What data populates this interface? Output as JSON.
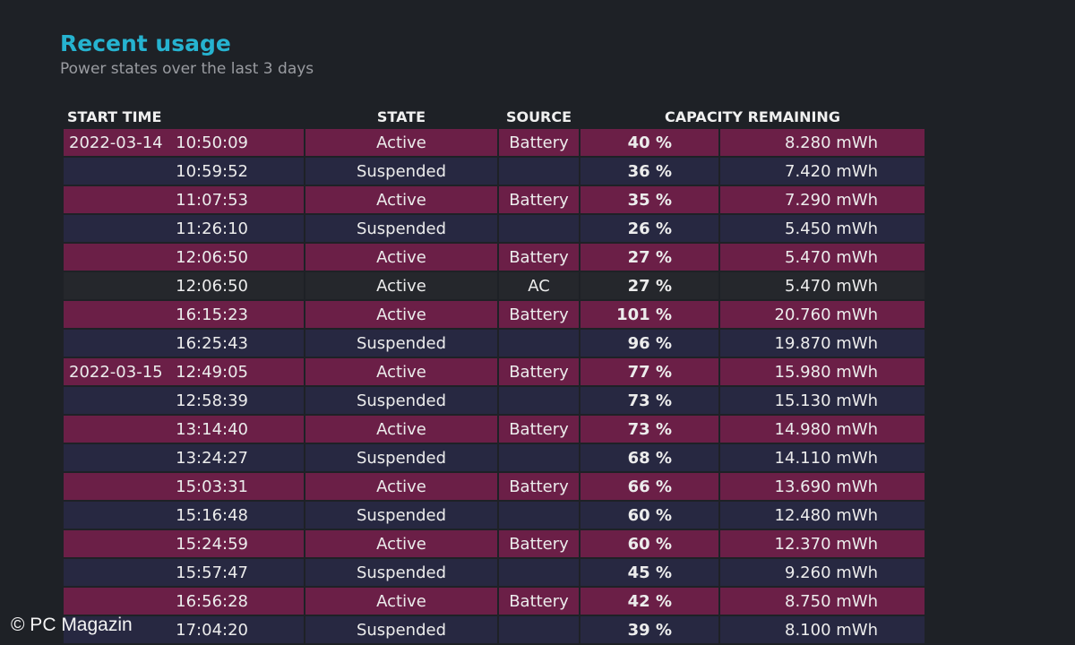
{
  "header": {
    "title": "Recent usage",
    "subtitle": "Power states over the last 3 days"
  },
  "table": {
    "columns": [
      "START TIME",
      "STATE",
      "SOURCE",
      "CAPACITY REMAINING"
    ],
    "rows": [
      {
        "date": "2022-03-14",
        "time": "10:50:09",
        "state": "Active",
        "source": "Battery",
        "percent": "40 %",
        "mwh": "8.280 mWh"
      },
      {
        "date": "",
        "time": "10:59:52",
        "state": "Suspended",
        "source": "",
        "percent": "36 %",
        "mwh": "7.420 mWh"
      },
      {
        "date": "",
        "time": "11:07:53",
        "state": "Active",
        "source": "Battery",
        "percent": "35 %",
        "mwh": "7.290 mWh"
      },
      {
        "date": "",
        "time": "11:26:10",
        "state": "Suspended",
        "source": "",
        "percent": "26 %",
        "mwh": "5.450 mWh"
      },
      {
        "date": "",
        "time": "12:06:50",
        "state": "Active",
        "source": "Battery",
        "percent": "27 %",
        "mwh": "5.470 mWh"
      },
      {
        "date": "",
        "time": "12:06:50",
        "state": "Active",
        "source": "AC",
        "percent": "27 %",
        "mwh": "5.470 mWh"
      },
      {
        "date": "",
        "time": "16:15:23",
        "state": "Active",
        "source": "Battery",
        "percent": "101 %",
        "mwh": "20.760 mWh"
      },
      {
        "date": "",
        "time": "16:25:43",
        "state": "Suspended",
        "source": "",
        "percent": "96 %",
        "mwh": "19.870 mWh"
      },
      {
        "date": "2022-03-15",
        "time": "12:49:05",
        "state": "Active",
        "source": "Battery",
        "percent": "77 %",
        "mwh": "15.980 mWh"
      },
      {
        "date": "",
        "time": "12:58:39",
        "state": "Suspended",
        "source": "",
        "percent": "73 %",
        "mwh": "15.130 mWh"
      },
      {
        "date": "",
        "time": "13:14:40",
        "state": "Active",
        "source": "Battery",
        "percent": "73 %",
        "mwh": "14.980 mWh"
      },
      {
        "date": "",
        "time": "13:24:27",
        "state": "Suspended",
        "source": "",
        "percent": "68 %",
        "mwh": "14.110 mWh"
      },
      {
        "date": "",
        "time": "15:03:31",
        "state": "Active",
        "source": "Battery",
        "percent": "66 %",
        "mwh": "13.690 mWh"
      },
      {
        "date": "",
        "time": "15:16:48",
        "state": "Suspended",
        "source": "",
        "percent": "60 %",
        "mwh": "12.480 mWh"
      },
      {
        "date": "",
        "time": "15:24:59",
        "state": "Active",
        "source": "Battery",
        "percent": "60 %",
        "mwh": "12.370 mWh"
      },
      {
        "date": "",
        "time": "15:57:47",
        "state": "Suspended",
        "source": "",
        "percent": "45 %",
        "mwh": "9.260 mWh"
      },
      {
        "date": "",
        "time": "16:56:28",
        "state": "Active",
        "source": "Battery",
        "percent": "42 %",
        "mwh": "8.750 mWh"
      },
      {
        "date": "",
        "time": "17:04:20",
        "state": "Suspended",
        "source": "",
        "percent": "39 %",
        "mwh": "8.100 mWh"
      }
    ]
  },
  "watermark": "© PC Magazin",
  "colors": {
    "title": "#26b3d0",
    "active_battery_row": "#6b1f47",
    "suspended_row": "#272841",
    "ac_row": "#25272c",
    "background": "#1e2126"
  }
}
